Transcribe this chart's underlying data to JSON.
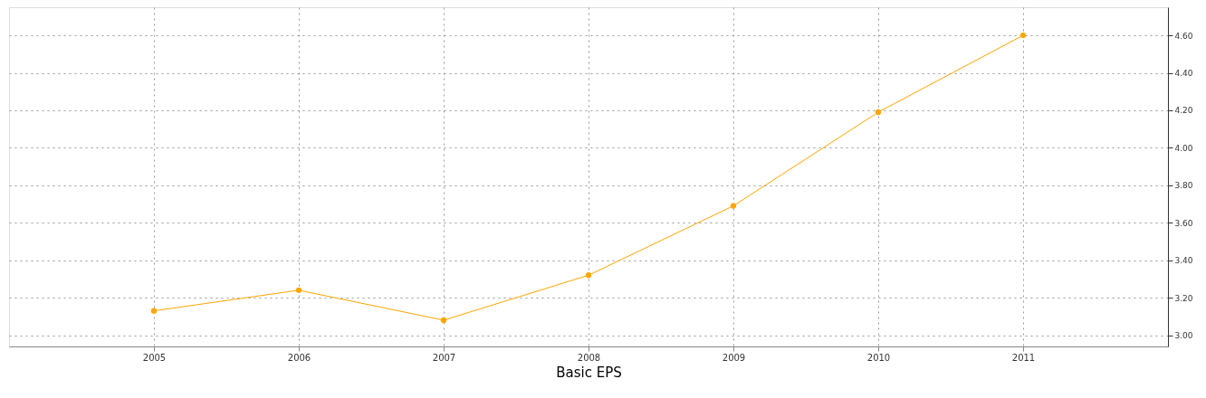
{
  "chart_data": {
    "type": "line",
    "xlabel": "Basic EPS",
    "x": [
      2005,
      2006,
      2007,
      2008,
      2009,
      2010,
      2011
    ],
    "series": [
      {
        "color": "#ffa500",
        "values": [
          3.13,
          3.24,
          3.08,
          3.32,
          3.69,
          4.19,
          4.6
        ]
      }
    ],
    "xlim": [
      2004,
      2012
    ],
    "xticks": [
      2005,
      2006,
      2007,
      2008,
      2009,
      2010,
      2011
    ],
    "ylim": [
      2.94,
      4.75
    ],
    "yticks": [
      {
        "value": 3.0,
        "label": "3.00"
      },
      {
        "value": 3.2,
        "label": "3.20"
      },
      {
        "value": 3.4,
        "label": "3.40"
      },
      {
        "value": 3.6,
        "label": "3.60"
      },
      {
        "value": 3.8,
        "label": "3.80"
      },
      {
        "value": 4.0,
        "label": "4.00"
      },
      {
        "value": 4.2,
        "label": "4.20"
      },
      {
        "value": 4.4,
        "label": "4.40"
      },
      {
        "value": 4.6,
        "label": "4.60"
      }
    ],
    "grid": true,
    "marker": "circle",
    "line_style": "solid"
  }
}
